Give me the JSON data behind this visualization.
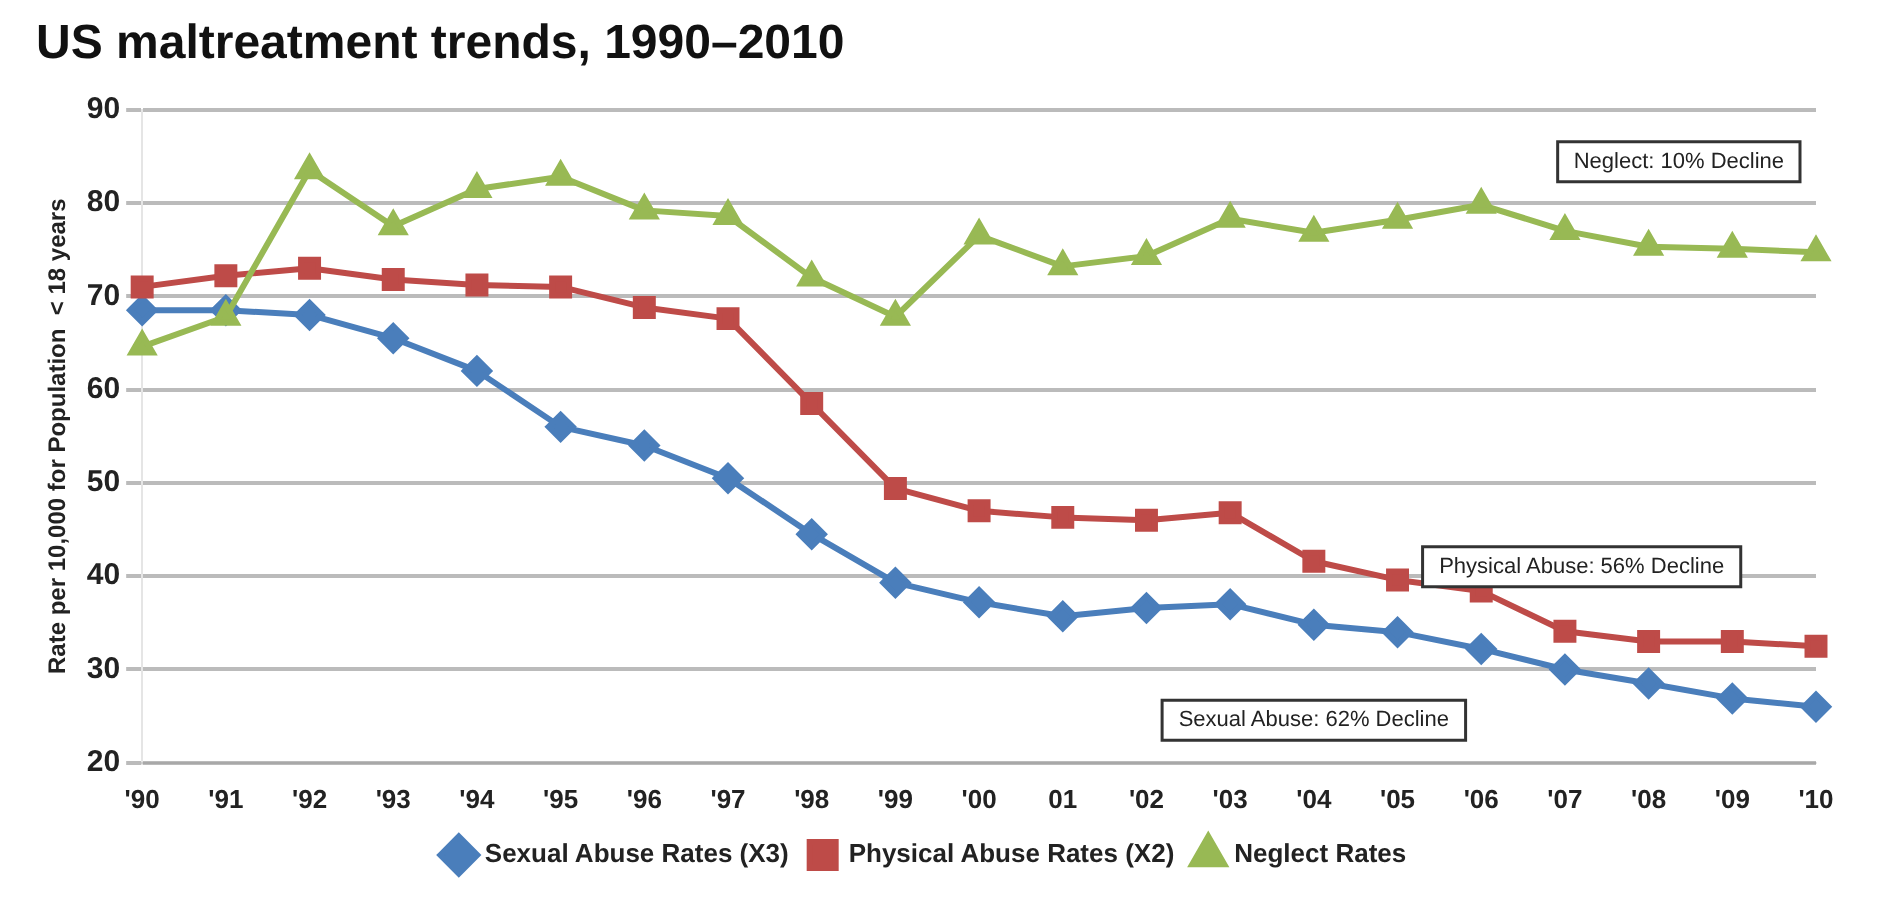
{
  "chart_data": {
    "type": "line",
    "title": "US maltreatment trends, 1990–2010",
    "ylabel": "Rate per 10,000 for Population  < 18 years",
    "categories": [
      "'90",
      "'91",
      "'92",
      "'93",
      "'94",
      "'95",
      "'96",
      "'97",
      "'98",
      "'99",
      "'00",
      "01",
      "'02",
      "'03",
      "'04",
      "'05",
      "'06",
      "'07",
      "'08",
      "'09",
      "'10"
    ],
    "series": [
      {
        "name": "Sexual Abuse Rates (X3)",
        "color": "#4a7ebb",
        "marker": "diamond",
        "values": [
          68.5,
          68.5,
          68,
          65.5,
          62,
          56,
          54,
          50.5,
          44.5,
          39.3,
          37.2,
          35.7,
          36.6,
          37,
          34.8,
          34,
          32.2,
          30,
          28.5,
          26.9,
          26
        ]
      },
      {
        "name": "Physical Abuse Rates (X2)",
        "color": "#be4b48",
        "marker": "square",
        "values": [
          71,
          72.2,
          73,
          71.8,
          71.2,
          71,
          68.8,
          67.6,
          58.5,
          49.4,
          47,
          46.3,
          46,
          46.8,
          41.6,
          39.6,
          38.4,
          34.1,
          33,
          33,
          32.5
        ]
      },
      {
        "name": "Neglect Rates",
        "color": "#98b954",
        "marker": "triangle",
        "values": [
          64.6,
          67.8,
          83.5,
          77.5,
          81.5,
          82.8,
          79.2,
          78.6,
          72,
          67.8,
          76.5,
          73.2,
          74.3,
          78.3,
          76.8,
          78.2,
          79.8,
          77,
          75.3,
          75.1,
          74.7
        ]
      }
    ],
    "annotations": [
      "Neglect: 10% Decline",
      "Physical Abuse: 56% Decline",
      "Sexual Abuse: 62% Decline"
    ],
    "ylim": [
      20,
      90
    ],
    "yticks": [
      20,
      30,
      40,
      50,
      60,
      70,
      80,
      90
    ],
    "grid": "y",
    "legend": "bottom"
  }
}
